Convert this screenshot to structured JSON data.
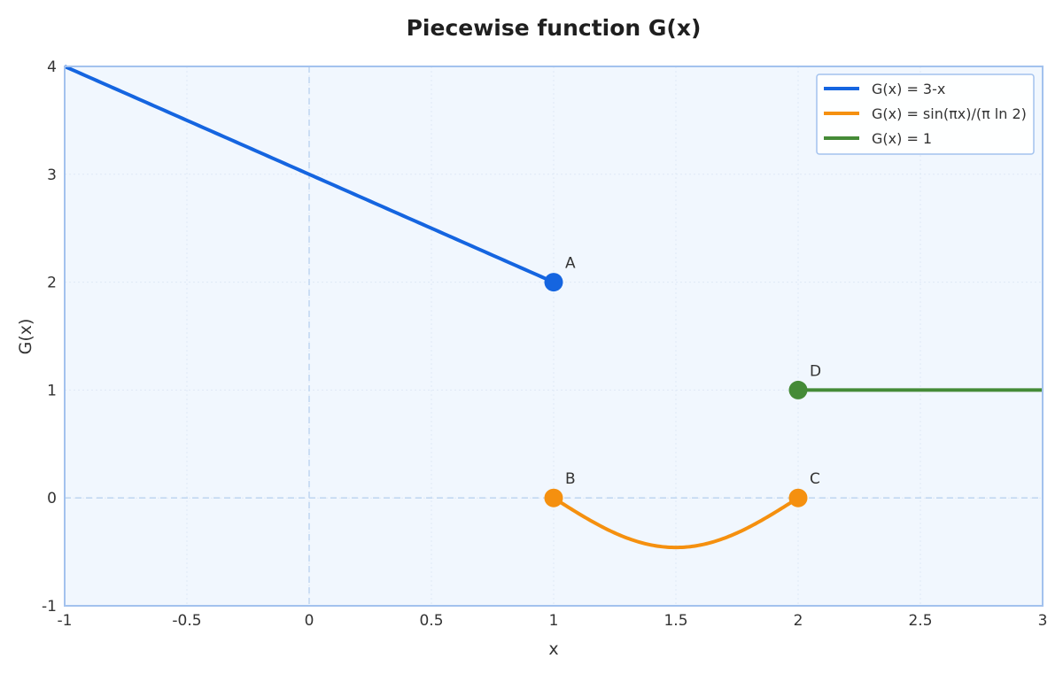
{
  "chart_data": {
    "type": "line",
    "title": "Piecewise function G(x)",
    "xlabel": "x",
    "ylabel": "G(x)",
    "xlim": [
      -1,
      3
    ],
    "ylim": [
      -1,
      4
    ],
    "xticks": [
      -1,
      -0.5,
      0,
      0.5,
      1,
      1.5,
      2,
      2.5,
      3
    ],
    "xtick_labels": [
      "-1",
      "-0.5",
      "0",
      "0.5",
      "1",
      "1.5",
      "2",
      "2.5",
      "3"
    ],
    "yticks": [
      -1,
      0,
      1,
      2,
      3,
      4
    ],
    "ytick_labels": [
      "-1",
      "0",
      "1",
      "2",
      "3",
      "4"
    ],
    "grid": true,
    "legend_position": "top-right",
    "series": [
      {
        "name": "G(x) = 3-x",
        "color": "#1565e0",
        "expression": "3-x",
        "domain": [
          -1,
          1
        ],
        "x": [
          -1,
          1
        ],
        "y": [
          4,
          2
        ]
      },
      {
        "name": "G(x) = sin(πx)/(π ln 2)",
        "color": "#f5900f",
        "expression": "sin(pi*x)/(pi*ln(2))",
        "domain": [
          1,
          2
        ],
        "x": [
          1,
          1.25,
          1.5,
          1.75,
          2
        ],
        "y": [
          0,
          -0.325,
          -0.459,
          -0.325,
          0
        ]
      },
      {
        "name": "G(x) = 1",
        "color": "#458b37",
        "expression": "1",
        "domain": [
          2,
          3
        ],
        "x": [
          2,
          3
        ],
        "y": [
          1,
          1
        ]
      }
    ],
    "points": [
      {
        "label": "A",
        "x": 1,
        "y": 2,
        "color": "#1565e0"
      },
      {
        "label": "B",
        "x": 1,
        "y": 0,
        "color": "#f5900f"
      },
      {
        "label": "C",
        "x": 2,
        "y": 0,
        "color": "#f5900f"
      },
      {
        "label": "D",
        "x": 2,
        "y": 1,
        "color": "#458b37"
      }
    ],
    "colors": {
      "plot_background": "#f1f7fe",
      "plot_border": "#a3c2ee",
      "zero_lines": "#c2d8f1",
      "grid": "#dfe9f6"
    }
  }
}
